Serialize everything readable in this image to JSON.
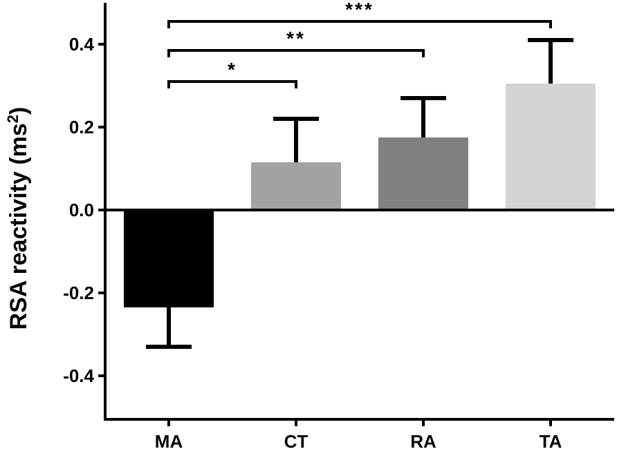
{
  "chart_data": {
    "type": "bar",
    "title": "",
    "xlabel": "",
    "ylabel": "RSA reactivity (ms",
    "ylabel_superscript": "2",
    "ylabel_close": ")",
    "ylim": [
      -0.5,
      0.5
    ],
    "yticks": [
      -0.4,
      -0.2,
      0.0,
      0.2,
      0.4
    ],
    "ytick_labels": [
      "-0.4",
      "-0.2",
      "0.0",
      "0.2",
      "0.4"
    ],
    "categories": [
      "MA",
      "CT",
      "RA",
      "TA"
    ],
    "values": [
      -0.235,
      0.115,
      0.175,
      0.305
    ],
    "errors": [
      0.095,
      0.105,
      0.095,
      0.105
    ],
    "colors": [
      "#000000",
      "#a3a3a6",
      "#808080",
      "#d4d4d4"
    ],
    "grid": false,
    "legend": "none",
    "significance": [
      {
        "from": "MA",
        "to": "CT",
        "label": "*",
        "y": 0.31
      },
      {
        "from": "MA",
        "to": "RA",
        "label": "**",
        "y": 0.385
      },
      {
        "from": "MA",
        "to": "TA",
        "label": "***",
        "y": 0.455
      }
    ]
  }
}
